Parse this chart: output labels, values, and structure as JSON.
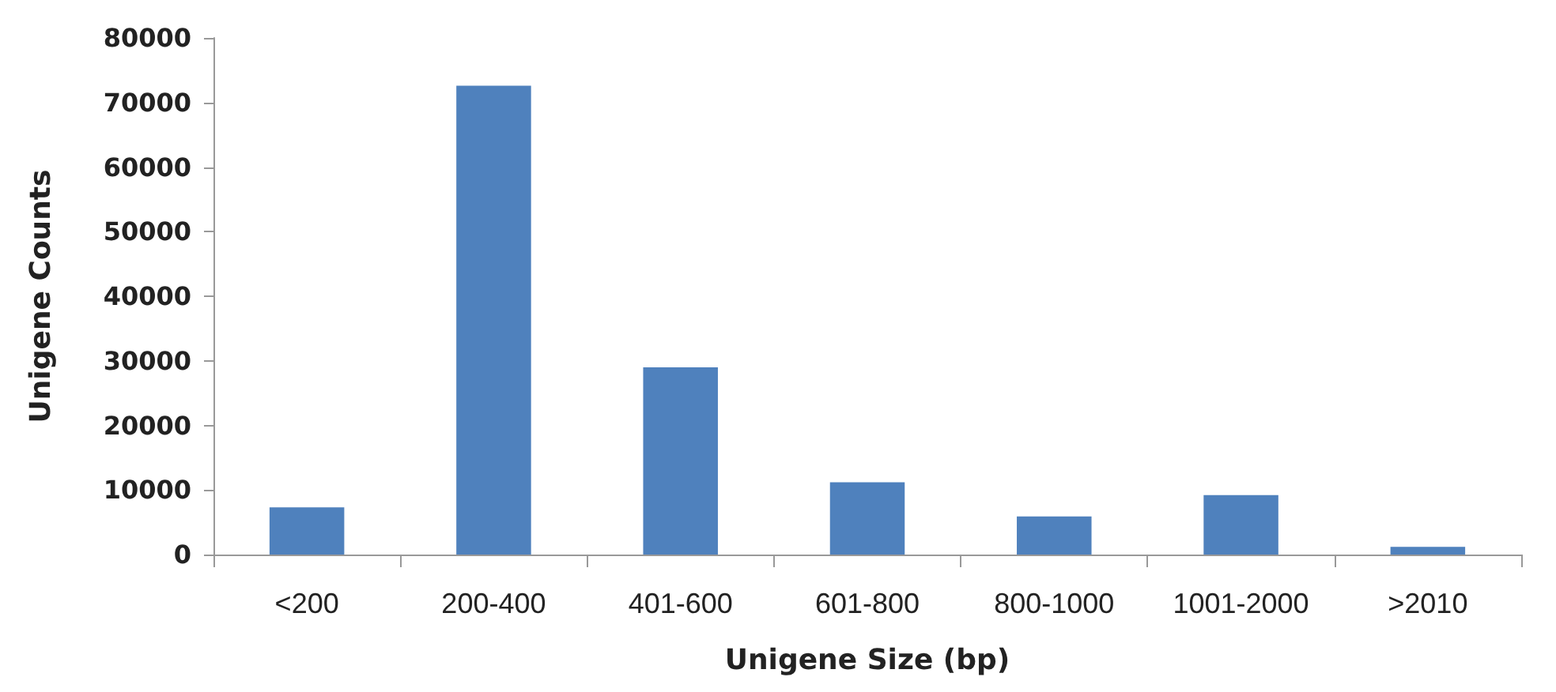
{
  "chart_data": {
    "type": "bar",
    "xlabel": "Unigene Size (bp)",
    "ylabel": "Unigene Counts",
    "categories": [
      "<200",
      "200-400",
      "401-600",
      "601-800",
      "800-1000",
      "1001-2000",
      ">2010"
    ],
    "values": [
      7300,
      72600,
      29000,
      11200,
      5900,
      9200,
      1200
    ],
    "color": "#4f81bd",
    "ylim": [
      0,
      80000
    ],
    "yticks": [
      0,
      10000,
      20000,
      30000,
      40000,
      50000,
      60000,
      70000,
      80000
    ],
    "grid": false
  }
}
